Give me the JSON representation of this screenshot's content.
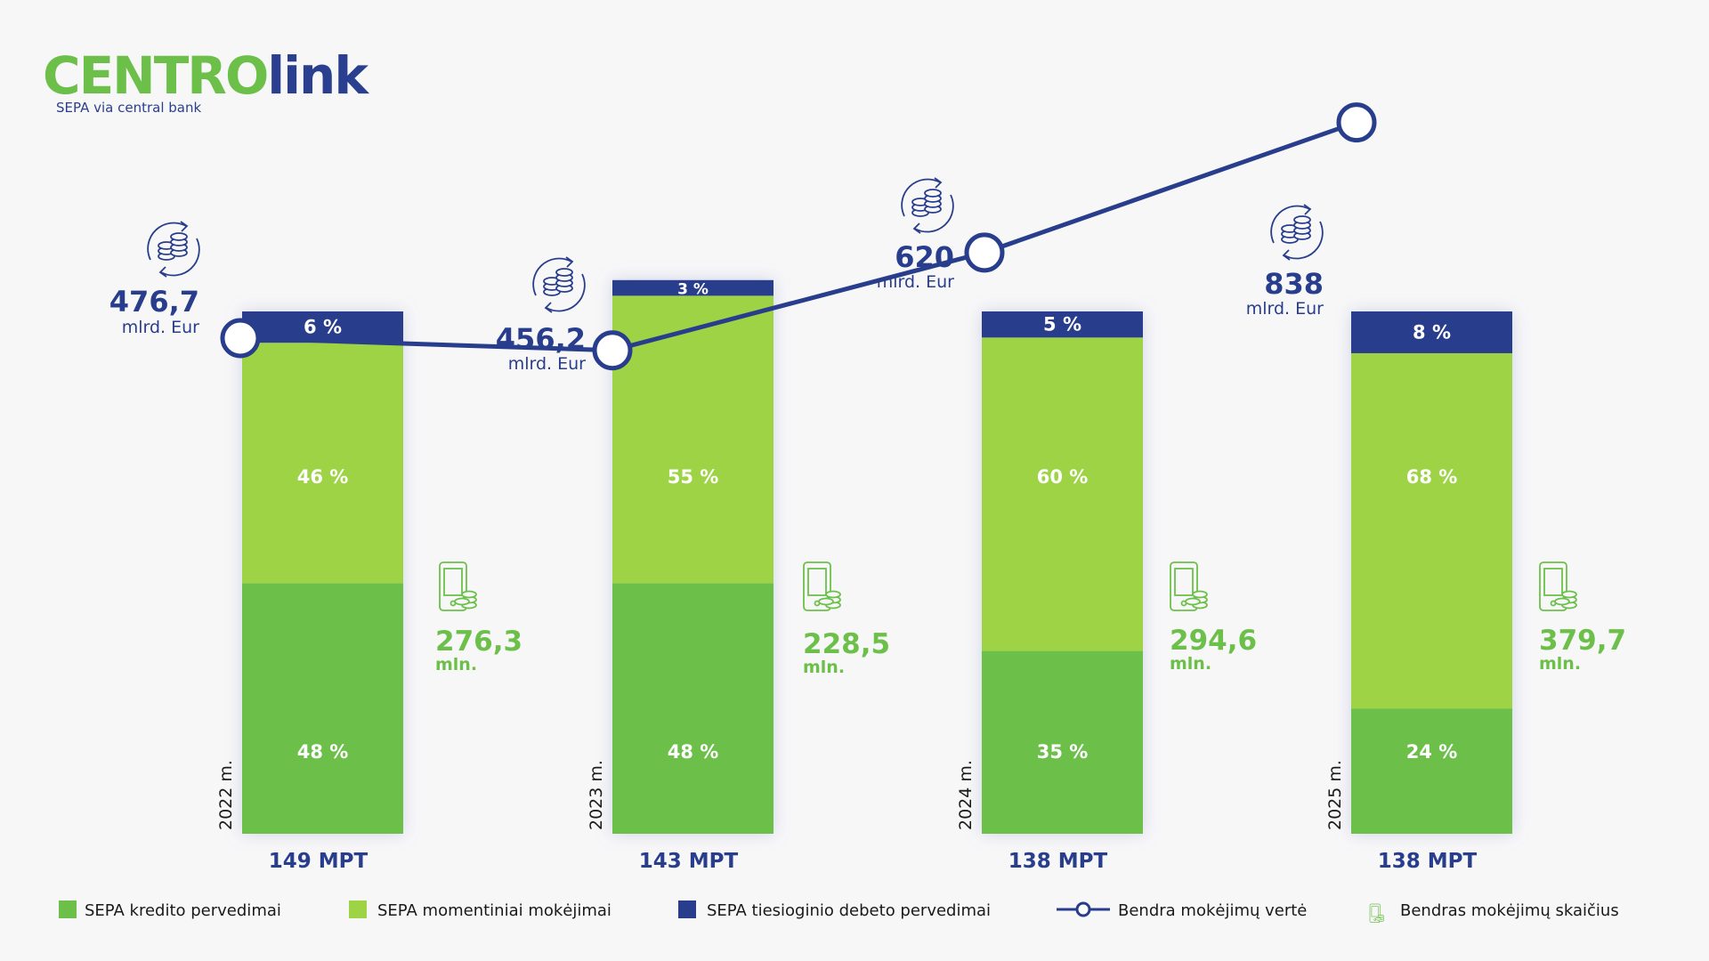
{
  "logo": {
    "brand_part1": "CENTRO",
    "brand_part2": "link",
    "tagline": "SEPA via central bank"
  },
  "colors": {
    "credit": "#6cc04a",
    "instant": "#9ed345",
    "debit": "#283e8d",
    "line": "#283e8d",
    "count_text": "#6cc04a"
  },
  "icons": [
    "coins-cycle-icon",
    "phone-payment-icon"
  ],
  "chart_data": {
    "type": "bar",
    "stacked": true,
    "categories": [
      "2022 m.",
      "2023 m.",
      "2024 m.",
      "2025 m."
    ],
    "series": [
      {
        "name": "SEPA kredito pervedimai",
        "values": [
          48,
          48,
          35,
          24
        ],
        "labels": [
          "48 %",
          "48 %",
          "35 %",
          "24 %"
        ]
      },
      {
        "name": "SEPA momentiniai mokėjimai",
        "values": [
          46,
          55,
          60,
          68
        ],
        "labels": [
          "46 %",
          "55 %",
          "60 %",
          "68 %"
        ]
      },
      {
        "name": "SEPA tiesioginio debeto pervedimai",
        "values": [
          6,
          3,
          5,
          8
        ],
        "labels": [
          "6 %",
          "3 %",
          "5 %",
          "8 %"
        ]
      }
    ],
    "total_value": {
      "name": "Bendra mokėjimų vertė",
      "values": [
        476.7,
        456.2,
        620,
        838
      ],
      "labels": [
        "476,7",
        "456,2",
        "620",
        "838"
      ],
      "unit": "mlrd. Eur"
    },
    "total_count": {
      "name": "Bendras mokėjimų skaičius",
      "values": [
        276.3,
        228.5,
        294.6,
        379.7
      ],
      "labels": [
        "276,3",
        "228,5",
        "294,6",
        "379,7"
      ],
      "unit": "mln."
    },
    "participants": [
      "149 MPT",
      "143 MPT",
      "138 MPT",
      "138 MPT"
    ],
    "legend_position": "bottom"
  }
}
